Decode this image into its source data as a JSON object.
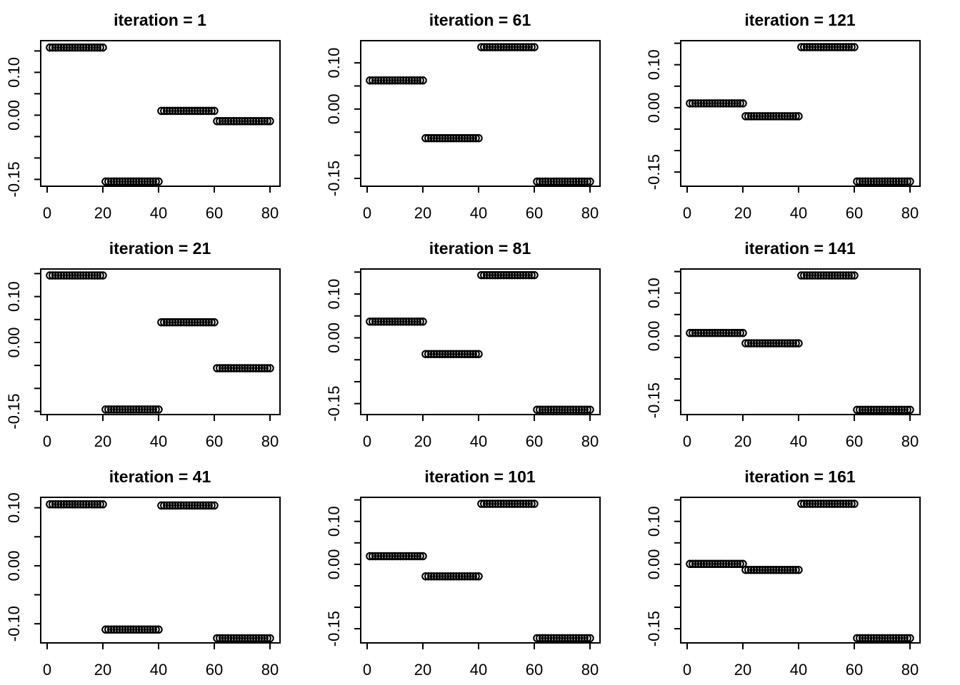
{
  "colors": {
    "stroke": "#000000",
    "background": "#ffffff"
  },
  "chart_data": {
    "type": "scatter",
    "grid": {
      "rows": 3,
      "cols": 3
    },
    "marker": {
      "shape": "open-circle",
      "color": "#000000"
    },
    "x_axis": {
      "lim": [
        -2.31,
        83.59
      ],
      "ticks": [
        0,
        20,
        40,
        60,
        80
      ],
      "labels": [
        "0",
        "20",
        "40",
        "60",
        "80"
      ]
    },
    "panels": [
      {
        "title": "iteration = 1",
        "ylim": [
          -0.166,
          0.174
        ],
        "y_ticks": [
          0.15,
          0.1,
          0.05,
          0.0,
          -0.05,
          -0.1,
          -0.15
        ],
        "y_tick_labels": [
          "",
          "0.10",
          "",
          "0.00",
          "",
          "",
          "-0.15"
        ],
        "segments": [
          {
            "x_start": 1,
            "x_end": 20,
            "y": 0.158
          },
          {
            "x_start": 21,
            "x_end": 40,
            "y": -0.155
          },
          {
            "x_start": 41,
            "x_end": 60,
            "y": 0.01
          },
          {
            "x_start": 61,
            "x_end": 80,
            "y": -0.014
          }
        ]
      },
      {
        "title": "iteration = 61",
        "ylim": [
          -0.167,
          0.148
        ],
        "y_ticks": [
          0.1,
          0.05,
          0.0,
          -0.05,
          -0.1,
          -0.15
        ],
        "y_tick_labels": [
          "0.10",
          "",
          "0.00",
          "",
          "",
          "-0.15"
        ],
        "segments": [
          {
            "x_start": 1,
            "x_end": 20,
            "y": 0.062
          },
          {
            "x_start": 21,
            "x_end": 40,
            "y": -0.063
          },
          {
            "x_start": 41,
            "x_end": 60,
            "y": 0.134
          },
          {
            "x_start": 61,
            "x_end": 80,
            "y": -0.157
          }
        ]
      },
      {
        "title": "iteration = 121",
        "ylim": [
          -0.183,
          0.156
        ],
        "y_ticks": [
          0.15,
          0.1,
          0.05,
          0.0,
          -0.05,
          -0.1,
          -0.15
        ],
        "y_tick_labels": [
          "",
          "0.10",
          "",
          "0.00",
          "",
          "",
          "-0.15"
        ],
        "segments": [
          {
            "x_start": 1,
            "x_end": 20,
            "y": 0.01
          },
          {
            "x_start": 21,
            "x_end": 40,
            "y": -0.02
          },
          {
            "x_start": 41,
            "x_end": 60,
            "y": 0.141
          },
          {
            "x_start": 61,
            "x_end": 80,
            "y": -0.172
          }
        ]
      },
      {
        "title": "iteration = 21",
        "ylim": [
          -0.157,
          0.16
        ],
        "y_ticks": [
          0.15,
          0.1,
          0.05,
          0.0,
          -0.05,
          -0.1,
          -0.15
        ],
        "y_tick_labels": [
          "",
          "0.10",
          "",
          "0.00",
          "",
          "",
          "-0.15"
        ],
        "segments": [
          {
            "x_start": 1,
            "x_end": 20,
            "y": 0.146
          },
          {
            "x_start": 21,
            "x_end": 40,
            "y": -0.146
          },
          {
            "x_start": 41,
            "x_end": 60,
            "y": 0.044
          },
          {
            "x_start": 61,
            "x_end": 80,
            "y": -0.056
          }
        ]
      },
      {
        "title": "iteration = 81",
        "ylim": [
          -0.175,
          0.157
        ],
        "y_ticks": [
          0.15,
          0.1,
          0.05,
          0.0,
          -0.05,
          -0.1,
          -0.15
        ],
        "y_tick_labels": [
          "",
          "0.10",
          "",
          "0.00",
          "",
          "",
          "-0.15"
        ],
        "segments": [
          {
            "x_start": 1,
            "x_end": 20,
            "y": 0.037
          },
          {
            "x_start": 21,
            "x_end": 40,
            "y": -0.037
          },
          {
            "x_start": 41,
            "x_end": 60,
            "y": 0.143
          },
          {
            "x_start": 61,
            "x_end": 80,
            "y": -0.164
          }
        ]
      },
      {
        "title": "iteration = 141",
        "ylim": [
          -0.183,
          0.156
        ],
        "y_ticks": [
          0.15,
          0.1,
          0.05,
          0.0,
          -0.05,
          -0.1,
          -0.15
        ],
        "y_tick_labels": [
          "",
          "0.10",
          "",
          "0.00",
          "",
          "",
          "-0.15"
        ],
        "segments": [
          {
            "x_start": 1,
            "x_end": 20,
            "y": 0.007
          },
          {
            "x_start": 21,
            "x_end": 40,
            "y": -0.017
          },
          {
            "x_start": 41,
            "x_end": 60,
            "y": 0.141
          },
          {
            "x_start": 61,
            "x_end": 80,
            "y": -0.172
          }
        ]
      },
      {
        "title": "iteration = 41",
        "ylim": [
          -0.133,
          0.118
        ],
        "y_ticks": [
          0.1,
          0.05,
          0.0,
          -0.05,
          -0.1
        ],
        "y_tick_labels": [
          "0.10",
          "",
          "0.00",
          "",
          "-0.10"
        ],
        "segments": [
          {
            "x_start": 1,
            "x_end": 20,
            "y": 0.106
          },
          {
            "x_start": 21,
            "x_end": 40,
            "y": -0.11
          },
          {
            "x_start": 41,
            "x_end": 60,
            "y": 0.104
          },
          {
            "x_start": 61,
            "x_end": 80,
            "y": -0.125
          }
        ]
      },
      {
        "title": "iteration = 101",
        "ylim": [
          -0.183,
          0.156
        ],
        "y_ticks": [
          0.15,
          0.1,
          0.05,
          0.0,
          -0.05,
          -0.1,
          -0.15
        ],
        "y_tick_labels": [
          "",
          "0.10",
          "",
          "0.00",
          "",
          "",
          "-0.15"
        ],
        "segments": [
          {
            "x_start": 1,
            "x_end": 20,
            "y": 0.019
          },
          {
            "x_start": 21,
            "x_end": 40,
            "y": -0.028
          },
          {
            "x_start": 41,
            "x_end": 60,
            "y": 0.141
          },
          {
            "x_start": 61,
            "x_end": 80,
            "y": -0.172
          }
        ]
      },
      {
        "title": "iteration = 161",
        "ylim": [
          -0.183,
          0.156
        ],
        "y_ticks": [
          0.15,
          0.1,
          0.05,
          0.0,
          -0.05,
          -0.1,
          -0.15
        ],
        "y_tick_labels": [
          "",
          "0.10",
          "",
          "0.00",
          "",
          "",
          "-0.15"
        ],
        "segments": [
          {
            "x_start": 1,
            "x_end": 20,
            "y": 0.001
          },
          {
            "x_start": 21,
            "x_end": 40,
            "y": -0.013
          },
          {
            "x_start": 41,
            "x_end": 60,
            "y": 0.141
          },
          {
            "x_start": 61,
            "x_end": 80,
            "y": -0.172
          }
        ]
      }
    ]
  }
}
